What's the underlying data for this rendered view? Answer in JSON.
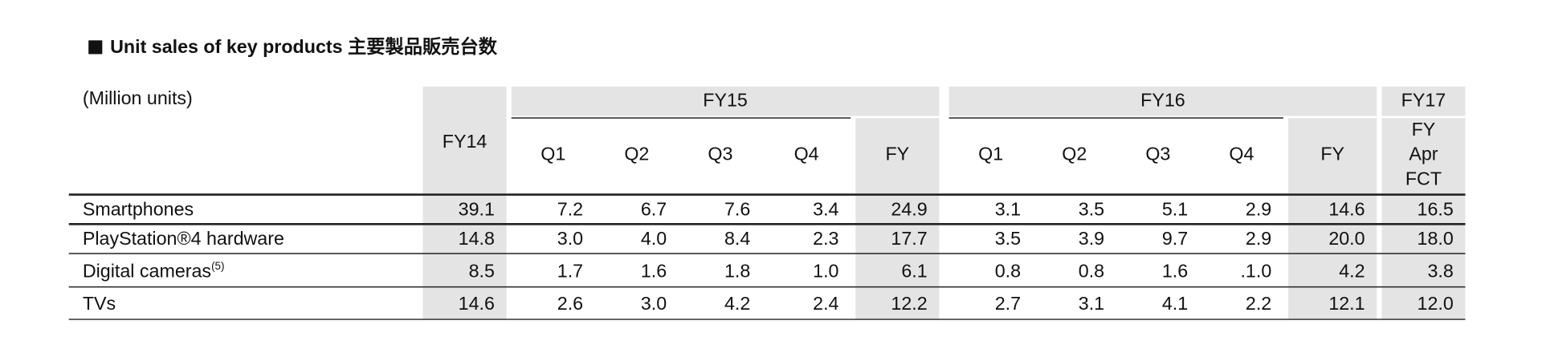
{
  "title": "Unit sales of key products 主要製品販売台数",
  "unit": "(Million units)",
  "header": {
    "groups": [
      {
        "label": "FY14",
        "columns": []
      },
      {
        "label": "FY15",
        "columns": [
          "Q1",
          "Q2",
          "Q3",
          "Q4",
          "FY"
        ]
      },
      {
        "label": "FY16",
        "columns": [
          "Q1",
          "Q2",
          "Q3",
          "Q4",
          "FY"
        ]
      },
      {
        "label": "FY17",
        "columns": [
          [
            "FY",
            "Apr",
            "FCT"
          ]
        ]
      }
    ]
  },
  "rows": [
    {
      "label": "Smartphones",
      "values": [
        "39.1",
        "7.2",
        "6.7",
        "7.6",
        "3.4",
        "24.9",
        "3.1",
        "3.5",
        "5.1",
        "2.9",
        "14.6",
        "16.5"
      ]
    },
    {
      "label": "PlayStation®4 hardware",
      "values": [
        "14.8",
        "3.0",
        "4.0",
        "8.4",
        "2.3",
        "17.7",
        "3.5",
        "3.9",
        "9.7",
        "2.9",
        "20.0",
        "18.0"
      ]
    },
    {
      "label": "Digital cameras",
      "note": "(5)",
      "values": [
        "8.5",
        "1.7",
        "1.6",
        "1.8",
        "1.0",
        "6.1",
        "0.8",
        "0.8",
        "1.6",
        ".1.0",
        "4.2",
        "3.8"
      ]
    },
    {
      "label": "TVs",
      "values": [
        "14.6",
        "2.6",
        "3.0",
        "4.2",
        "2.4",
        "12.2",
        "2.7",
        "3.1",
        "4.1",
        "2.2",
        "12.1",
        "12.0"
      ]
    }
  ]
}
